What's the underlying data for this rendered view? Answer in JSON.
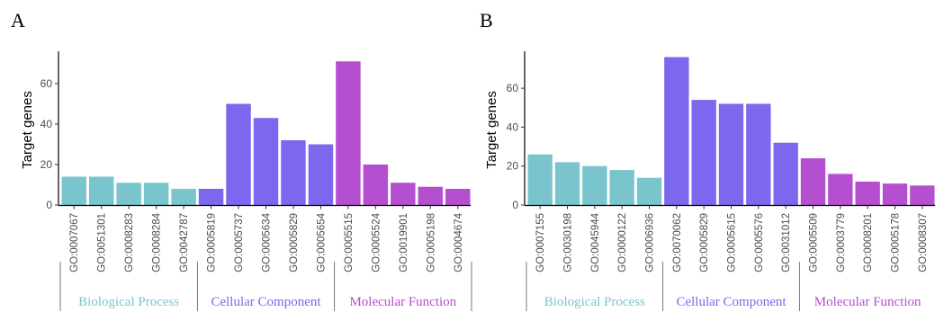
{
  "chart_data": [
    {
      "type": "bar",
      "panel_label": "A",
      "ylabel": "Target genes",
      "ylim": [
        0,
        76
      ],
      "yticks": [
        0,
        20,
        40,
        60
      ],
      "categories": [
        "GO:0007067",
        "GO:0051301",
        "GO:0008283",
        "GO:0008284",
        "GO:0042787",
        "GO:0005819",
        "GO:0005737",
        "GO:0005634",
        "GO:0005829",
        "GO:0005654",
        "GO:0005515",
        "GO:0005524",
        "GO:0019901",
        "GO:0005198",
        "GO:0004674"
      ],
      "values": [
        14,
        14,
        11,
        11,
        8,
        8,
        50,
        43,
        32,
        30,
        71,
        20,
        11,
        9,
        8
      ],
      "groups": [
        {
          "name": "Biological Process",
          "start": 0,
          "end": 4,
          "color": "#7ac5cd"
        },
        {
          "name": "Cellular Component",
          "start": 5,
          "end": 9,
          "color": "#7b68ee"
        },
        {
          "name": "Molecular Function",
          "start": 10,
          "end": 14,
          "color": "#b44fd0"
        }
      ]
    },
    {
      "type": "bar",
      "panel_label": "B",
      "ylabel": "Target genes",
      "ylim": [
        0,
        79
      ],
      "yticks": [
        0,
        20,
        40,
        60
      ],
      "categories": [
        "GO:0007155",
        "GO:0030198",
        "GO:0045944",
        "GO:0000122",
        "GO:0006936",
        "GO:0070062",
        "GO:0005829",
        "GO:0005615",
        "GO:0005576",
        "GO:0031012",
        "GO:0005509",
        "GO:0003779",
        "GO:0008201",
        "GO:0005178",
        "GO:0008307"
      ],
      "values": [
        26,
        22,
        20,
        18,
        14,
        76,
        54,
        52,
        52,
        32,
        24,
        16,
        12,
        11,
        10
      ],
      "groups": [
        {
          "name": "Biological Process",
          "start": 0,
          "end": 4,
          "color": "#7ac5cd"
        },
        {
          "name": "Cellular Component",
          "start": 5,
          "end": 9,
          "color": "#7b68ee"
        },
        {
          "name": "Molecular Function",
          "start": 10,
          "end": 14,
          "color": "#b44fd0"
        }
      ]
    }
  ]
}
